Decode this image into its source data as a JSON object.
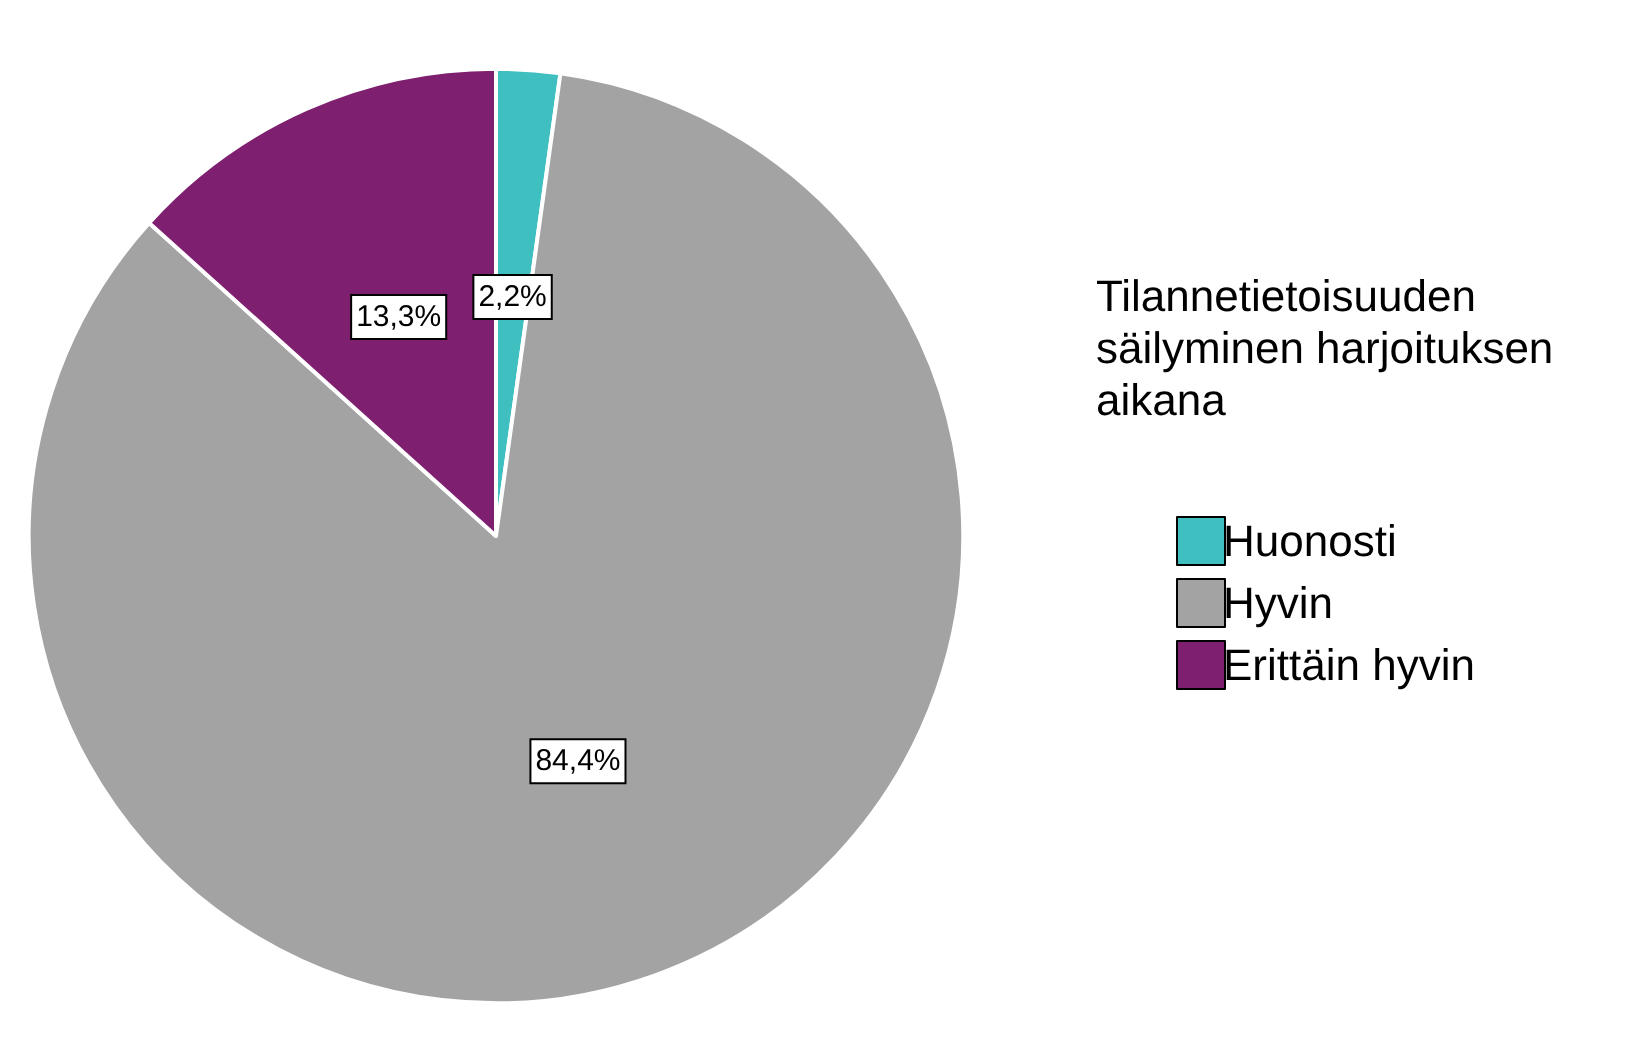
{
  "chart_data": {
    "type": "pie",
    "legend_title": "Tilannetietoisuuden säilyminen harjoituksen aikana",
    "categories": [
      "Huonosti",
      "Hyvin",
      "Erittäin hyvin"
    ],
    "values": [
      2.2,
      84.4,
      13.3
    ],
    "colors": [
      "#3fbfbf",
      "#a3a3a3",
      "#7f1f6f"
    ],
    "value_labels": [
      "2,2%",
      "84,4%",
      "13,3%"
    ],
    "legend": "right"
  }
}
